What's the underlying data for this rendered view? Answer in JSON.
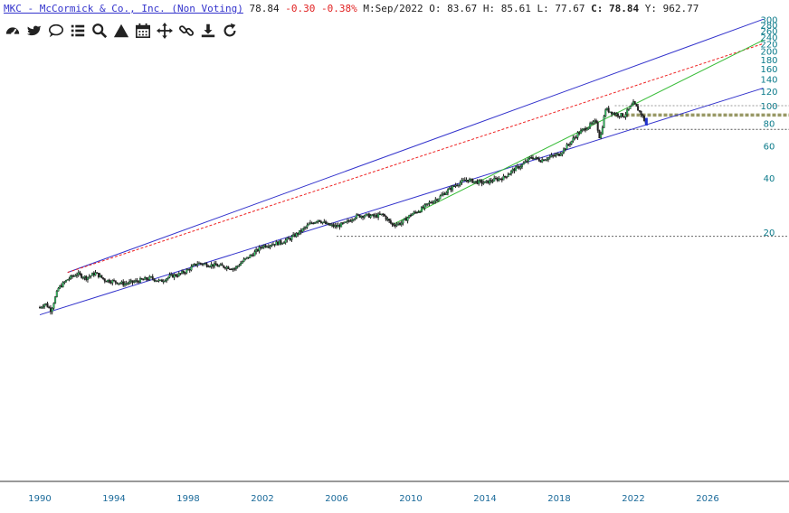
{
  "header": {
    "symbol": "MKC - McCormick & Co., Inc. (Non Voting)",
    "last": "78.84",
    "change": "-0.30",
    "change_pct": "-0.38%",
    "m_label": "M:",
    "m_value": "Sep/2022",
    "o_label": "O:",
    "o_value": "83.67",
    "h_label": "H:",
    "h_value": "85.61",
    "l_label": "L:",
    "l_value": "77.67",
    "c_label": "C:",
    "c_value": "78.84",
    "y_label": "Y:",
    "y_value": "962.77"
  },
  "toolbar": [
    {
      "name": "dashboard-icon"
    },
    {
      "name": "twitter-icon"
    },
    {
      "name": "comment-icon"
    },
    {
      "name": "list-icon"
    },
    {
      "name": "search-icon"
    },
    {
      "name": "triangle-icon"
    },
    {
      "name": "calendar-icon"
    },
    {
      "name": "move-icon"
    },
    {
      "name": "link-icon"
    },
    {
      "name": "download-icon"
    },
    {
      "name": "refresh-icon"
    }
  ],
  "chart_data": {
    "type": "candlestick",
    "scale": "log",
    "ylim": [
      6,
      300
    ],
    "xlim": [
      1989.7,
      2029.0
    ],
    "y_ticks": [
      20,
      40,
      60,
      80,
      100,
      120,
      140,
      160,
      180,
      200,
      220,
      240,
      260,
      280,
      300
    ],
    "x_ticks": [
      1990,
      1994,
      1998,
      2002,
      2006,
      2010,
      2014,
      2018,
      2022,
      2026
    ],
    "price_path": [
      [
        1990.0,
        7.7
      ],
      [
        1990.3,
        8.1
      ],
      [
        1990.6,
        7.4
      ],
      [
        1991.0,
        9.8
      ],
      [
        1991.5,
        11.0
      ],
      [
        1992.0,
        11.8
      ],
      [
        1992.5,
        11.2
      ],
      [
        1993.0,
        11.9
      ],
      [
        1993.5,
        10.9
      ],
      [
        1994.0,
        10.7
      ],
      [
        1994.5,
        10.4
      ],
      [
        1995.0,
        10.6
      ],
      [
        1995.5,
        10.9
      ],
      [
        1996.0,
        11.2
      ],
      [
        1996.5,
        10.7
      ],
      [
        1997.0,
        11.4
      ],
      [
        1997.5,
        11.7
      ],
      [
        1998.0,
        12.4
      ],
      [
        1998.5,
        13.5
      ],
      [
        1999.0,
        13.3
      ],
      [
        1999.5,
        13.1
      ],
      [
        2000.0,
        12.9
      ],
      [
        2000.5,
        12.6
      ],
      [
        2001.0,
        14.0
      ],
      [
        2001.5,
        15.2
      ],
      [
        2002.0,
        16.8
      ],
      [
        2002.5,
        17.2
      ],
      [
        2003.0,
        17.6
      ],
      [
        2003.5,
        18.5
      ],
      [
        2004.0,
        20.0
      ],
      [
        2004.5,
        22.0
      ],
      [
        2005.0,
        23.5
      ],
      [
        2005.5,
        22.0
      ],
      [
        2006.0,
        21.5
      ],
      [
        2006.5,
        22.5
      ],
      [
        2007.0,
        24.5
      ],
      [
        2007.5,
        24.8
      ],
      [
        2008.0,
        24.5
      ],
      [
        2008.5,
        25.0
      ],
      [
        2009.0,
        22.0
      ],
      [
        2009.5,
        22.5
      ],
      [
        2010.0,
        25.0
      ],
      [
        2010.5,
        26.5
      ],
      [
        2011.0,
        29.0
      ],
      [
        2011.5,
        31.0
      ],
      [
        2012.0,
        34.0
      ],
      [
        2012.5,
        37.0
      ],
      [
        2013.0,
        39.0
      ],
      [
        2013.5,
        38.0
      ],
      [
        2014.0,
        37.5
      ],
      [
        2014.5,
        39.0
      ],
      [
        2015.0,
        40.0
      ],
      [
        2015.5,
        44.0
      ],
      [
        2016.0,
        47.0
      ],
      [
        2016.5,
        52.0
      ],
      [
        2017.0,
        50.0
      ],
      [
        2017.5,
        52.0
      ],
      [
        2018.0,
        54.0
      ],
      [
        2018.5,
        61.0
      ],
      [
        2019.0,
        70.0
      ],
      [
        2019.5,
        76.0
      ],
      [
        2020.0,
        82.0
      ],
      [
        2020.2,
        65.0
      ],
      [
        2020.5,
        96.0
      ],
      [
        2021.0,
        90.0
      ],
      [
        2021.5,
        88.0
      ],
      [
        2022.0,
        103.0
      ],
      [
        2022.4,
        91.0
      ],
      [
        2022.7,
        78.84
      ]
    ],
    "lines": [
      {
        "name": "upper-channel",
        "color": "#3333cc",
        "style": "solid",
        "points": [
          [
            1991.5,
            12.0
          ],
          [
            2029.0,
            300.0
          ]
        ]
      },
      {
        "name": "lower-channel",
        "color": "#3333cc",
        "style": "solid",
        "points": [
          [
            1990.0,
            7.0
          ],
          [
            2029.0,
            125.0
          ]
        ]
      },
      {
        "name": "upper-trend",
        "color": "#ee2222",
        "style": "dashed",
        "points": [
          [
            1991.5,
            12.0
          ],
          [
            2029.0,
            220.0
          ]
        ]
      },
      {
        "name": "support-trend",
        "color": "#33bb33",
        "style": "solid",
        "points": [
          [
            2009.0,
            22.0
          ],
          [
            2029.0,
            230.0
          ]
        ]
      }
    ],
    "hlines": [
      {
        "name": "hline-2008",
        "value": 19.0,
        "from": 2006.0,
        "color": "#666666",
        "style": "dotted"
      },
      {
        "name": "hline-74",
        "value": 74.0,
        "from": 2021.0,
        "color": "#555555",
        "style": "dotted"
      },
      {
        "name": "hline-88",
        "value": 88.0,
        "from": 2021.0,
        "color": "#999966",
        "style": "dashed"
      },
      {
        "name": "hline-90",
        "value": 89.5,
        "from": 2021.0,
        "color": "#999966",
        "style": "dashed"
      },
      {
        "name": "hline-100",
        "value": 100.0,
        "from": 2021.0,
        "color": "#999999",
        "style": "dotted"
      }
    ]
  }
}
